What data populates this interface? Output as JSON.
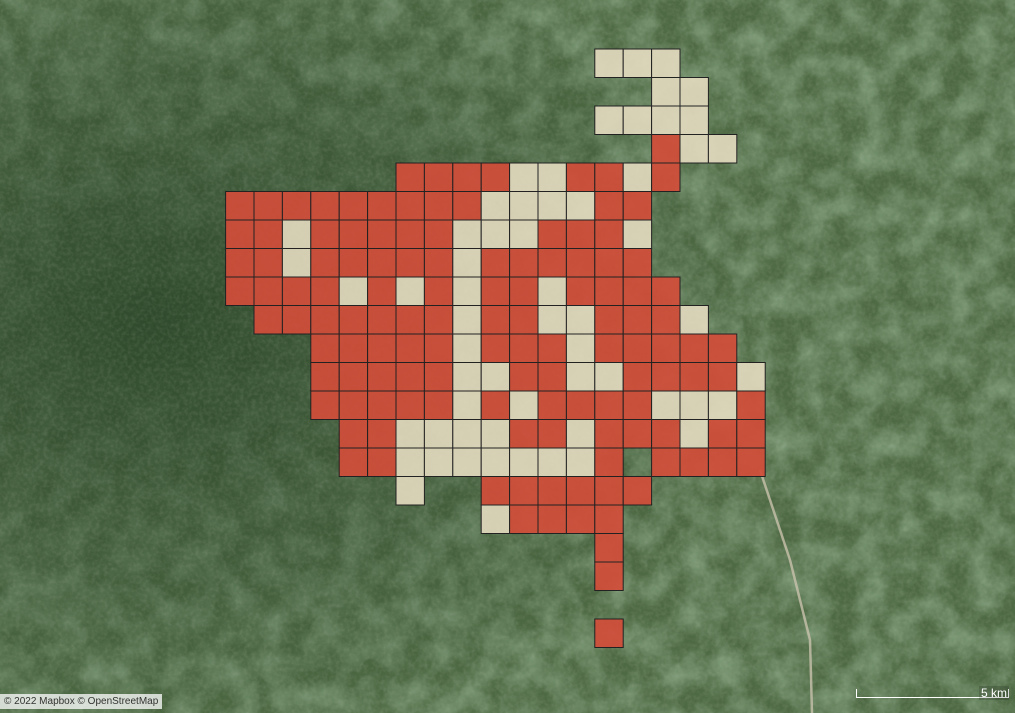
{
  "map": {
    "attribution": "© 2022 Mapbox © OpenStreetMap",
    "scale_label": "5 km",
    "colors": {
      "cell_high": "#d24d3a",
      "cell_low": "#e4dcc0",
      "cell_border": "#222222"
    },
    "grid_rows": [
      ".....................LLL........",
      ".......................LL.......",
      ".....................LLLL.......",
      ".......................RLL......",
      "..............RRRRLLRRLR........",
      "........RRRRRRRRRLLLLRR.........",
      "........RRLRRRRRLLLRRRL.........",
      "........RRLRRRRRLRRRRRR.........",
      "........RRRRLRLRLRRLRRRR........",
      ".........RRRRRRRLRRLLRRRL.......",
      "...........RRRRRLRRRLRRRRR......",
      "...........RRRRRLLRRLLRRRRL.....",
      "...........RRRRRLRLRRRRLLLR.....",
      "............RRLLLLRRLRRRLRR.....",
      "............RRLLLLLLLR.RRRR.....",
      "..............L..RRRRRR.........",
      ".................LRRRR..........",
      ".....................R..........",
      ".....................R..........",
      "................................",
      ".....................R.........."
    ],
    "legend_note": ""
  }
}
